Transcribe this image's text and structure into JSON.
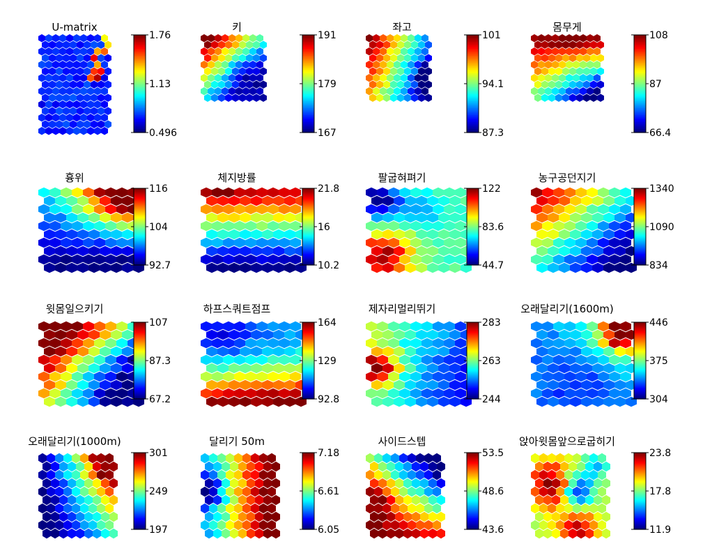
{
  "figure": {
    "panels": [
      {
        "title": "U-matrix",
        "ticks": [
          "1.76",
          "1.13",
          "0.496"
        ]
      },
      {
        "title": "키",
        "ticks": [
          "191",
          "179",
          "167"
        ]
      },
      {
        "title": "좌고",
        "ticks": [
          "101",
          "94.1",
          "87.3"
        ]
      },
      {
        "title": "몸무게",
        "ticks": [
          "108",
          "87",
          "66.4"
        ]
      },
      {
        "title": "흉위",
        "ticks": [
          "116",
          "104",
          "92.7"
        ]
      },
      {
        "title": "체지방률",
        "ticks": [
          "21.8",
          "16",
          "10.2"
        ]
      },
      {
        "title": "팔굽혀펴기",
        "ticks": [
          "122",
          "83.6",
          "44.7"
        ]
      },
      {
        "title": "농구공던지기",
        "ticks": [
          "1340",
          "1090",
          "834"
        ]
      },
      {
        "title": "윗몸일으키기",
        "ticks": [
          "107",
          "87.3",
          "67.2"
        ]
      },
      {
        "title": "하프스쿼트점프",
        "ticks": [
          "164",
          "129",
          "92.8"
        ]
      },
      {
        "title": "제자리멀리뛰기",
        "ticks": [
          "283",
          "263",
          "244"
        ]
      },
      {
        "title": "오래달리기(1600m)",
        "ticks": [
          "446",
          "375",
          "304"
        ]
      },
      {
        "title": "오래달리기(1000m)",
        "ticks": [
          "301",
          "249",
          "197"
        ]
      },
      {
        "title": "달리기 50m",
        "ticks": [
          "7.18",
          "6.61",
          "6.05"
        ]
      },
      {
        "title": "사이드스텝",
        "ticks": [
          "53.5",
          "48.6",
          "43.6"
        ]
      },
      {
        "title": "앉아윗몸앞으로굽히기",
        "ticks": [
          "23.8",
          "17.8",
          "11.9"
        ]
      }
    ]
  },
  "chart_data": [
    {
      "type": "heatmap",
      "title": "U-matrix",
      "colormap": "jet",
      "range": [
        0.496,
        1.76
      ],
      "grid": {
        "rows": 15,
        "cols": 10
      },
      "color_ticks": [
        0.496,
        1.13,
        1.76
      ],
      "pattern": "mostly low (blue) with scattered high cells at top-right"
    },
    {
      "type": "heatmap",
      "title": "키",
      "colormap": "jet",
      "range": [
        167,
        191
      ],
      "grid": {
        "rows": 10,
        "cols": 9
      },
      "color_ticks": [
        167,
        179,
        191
      ],
      "pattern": "high at top-left, low at bottom-right"
    },
    {
      "type": "heatmap",
      "title": "좌고",
      "colormap": "jet",
      "range": [
        87.3,
        101
      ],
      "grid": {
        "rows": 10,
        "cols": 9
      },
      "color_ticks": [
        87.3,
        94.1,
        101
      ],
      "pattern": "high at top-left, low at right"
    },
    {
      "type": "heatmap",
      "title": "몸무게",
      "colormap": "jet",
      "range": [
        66.4,
        108
      ],
      "grid": {
        "rows": 10,
        "cols": 10
      },
      "color_ticks": [
        66.4,
        87,
        108
      ],
      "pattern": "high along top rows, low at bottom-right"
    },
    {
      "type": "heatmap",
      "title": "흉위",
      "colormap": "jet",
      "range": [
        92.7,
        116
      ],
      "grid": {
        "rows": 10,
        "cols": 9
      },
      "color_ticks": [
        92.7,
        104,
        116
      ],
      "pattern": "high at top-right, low at bottom-right"
    },
    {
      "type": "heatmap",
      "title": "체지방률",
      "colormap": "jet",
      "range": [
        10.2,
        21.8
      ],
      "grid": {
        "rows": 10,
        "cols": 9
      },
      "color_ticks": [
        10.2,
        16,
        21.8
      ],
      "pattern": "high at top rows, low at bottom"
    },
    {
      "type": "heatmap",
      "title": "팔굽혀펴기",
      "colormap": "jet",
      "range": [
        44.7,
        122
      ],
      "grid": {
        "rows": 10,
        "cols": 9
      },
      "color_ticks": [
        44.7,
        83.6,
        122
      ],
      "pattern": "high at bottom-left, low at top-left"
    },
    {
      "type": "heatmap",
      "title": "농구공던지기",
      "colormap": "jet",
      "range": [
        834,
        1340
      ],
      "grid": {
        "rows": 10,
        "cols": 9
      },
      "color_ticks": [
        834,
        1090,
        1340
      ],
      "pattern": "high at top-left, low at bottom-right"
    },
    {
      "type": "heatmap",
      "title": "윗몸일으키기",
      "colormap": "jet",
      "range": [
        67.2,
        107
      ],
      "grid": {
        "rows": 10,
        "cols": 9
      },
      "color_ticks": [
        67.2,
        87.3,
        107
      ],
      "pattern": "high at bottom-left, low at top-right"
    },
    {
      "type": "heatmap",
      "title": "하프스쿼트점프",
      "colormap": "jet",
      "range": [
        92.8,
        164
      ],
      "grid": {
        "rows": 10,
        "cols": 9
      },
      "color_ticks": [
        92.8,
        129,
        164
      ],
      "pattern": "high at bottom, low at top-left"
    },
    {
      "type": "heatmap",
      "title": "제자리멀리뛰기",
      "colormap": "jet",
      "range": [
        244,
        283
      ],
      "grid": {
        "rows": 10,
        "cols": 9
      },
      "color_ticks": [
        244,
        263,
        283
      ],
      "pattern": "high at left-middle, low at right"
    },
    {
      "type": "heatmap",
      "title": "오래달리기(1600m)",
      "colormap": "jet",
      "range": [
        304,
        446
      ],
      "grid": {
        "rows": 10,
        "cols": 9
      },
      "color_ticks": [
        304,
        375,
        446
      ],
      "pattern": "high at top-right, low at center-bottom"
    },
    {
      "type": "heatmap",
      "title": "오래달리기(1000m)",
      "colormap": "jet",
      "range": [
        197,
        301
      ],
      "grid": {
        "rows": 10,
        "cols": 9
      },
      "color_ticks": [
        197,
        249,
        301
      ],
      "pattern": "high at top-right, low at bottom-left"
    },
    {
      "type": "heatmap",
      "title": "달리기 50m",
      "colormap": "jet",
      "range": [
        6.05,
        7.18
      ],
      "grid": {
        "rows": 10,
        "cols": 9
      },
      "color_ticks": [
        6.05,
        6.61,
        7.18
      ],
      "pattern": "high at right, low at left-middle"
    },
    {
      "type": "heatmap",
      "title": "사이드스텝",
      "colormap": "jet",
      "range": [
        43.6,
        53.5
      ],
      "grid": {
        "rows": 10,
        "cols": 9
      },
      "color_ticks": [
        43.6,
        48.6,
        53.5
      ],
      "pattern": "high at bottom-left, low at top-right"
    },
    {
      "type": "heatmap",
      "title": "앉아윗몸앞으로굽히기",
      "colormap": "jet",
      "range": [
        11.9,
        23.8
      ],
      "grid": {
        "rows": 10,
        "cols": 9
      },
      "color_ticks": [
        11.9,
        17.8,
        23.8
      ],
      "pattern": "high at left and bottom, low at center-right"
    }
  ]
}
